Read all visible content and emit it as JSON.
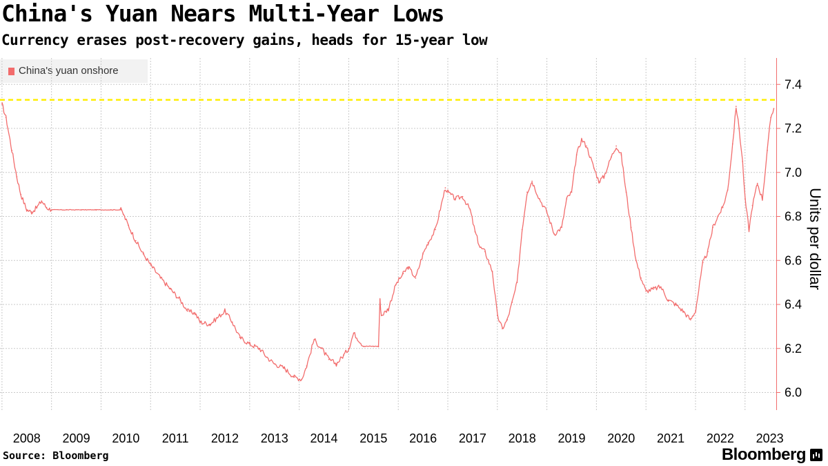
{
  "header": {
    "title": "China's Yuan Nears Multi-Year Lows",
    "subtitle": "Currency erases post-recovery gains, heads for 15-year low"
  },
  "footer": {
    "source": "Source: Bloomberg",
    "brand": "Bloomberg"
  },
  "colors": {
    "series": "#f26c6c",
    "reference_line": "#ffee00",
    "grid": "#c8c8c8",
    "axis": "#f26c6c"
  },
  "chart_data": {
    "type": "line",
    "title": "China's Yuan Nears Multi-Year Lows",
    "subtitle": "Currency erases post-recovery gains, heads for 15-year low",
    "xlabel": "",
    "ylabel": "Units per dollar",
    "ylim": [
      5.92,
      7.52
    ],
    "xlim": [
      2007.96,
      2023.63
    ],
    "y_ticks": [
      6.0,
      6.2,
      6.4,
      6.6,
      6.8,
      7.0,
      7.2,
      7.4
    ],
    "y_tick_labels": [
      "6.0",
      "6.2",
      "6.4",
      "6.6",
      "6.8",
      "7.0",
      "7.2",
      "7.4"
    ],
    "x_ticks": [
      2008,
      2009,
      2010,
      2011,
      2012,
      2013,
      2014,
      2015,
      2016,
      2017,
      2018,
      2019,
      2020,
      2021,
      2022,
      2023
    ],
    "x_tick_labels": [
      "2008",
      "2009",
      "2010",
      "2011",
      "2012",
      "2013",
      "2014",
      "2015",
      "2016",
      "2017",
      "2018",
      "2019",
      "2020",
      "2021",
      "2022",
      "2023"
    ],
    "grid": true,
    "legend_position": "top-left",
    "reference_line": {
      "y": 7.33,
      "style": "dashed"
    },
    "series": [
      {
        "name": "China's yuan onshore",
        "x": [
          2008.0,
          2008.08,
          2008.2,
          2008.3,
          2008.38,
          2008.5,
          2008.6,
          2008.7,
          2008.8,
          2008.9,
          2009.0,
          2009.3,
          2009.6,
          2009.9,
          2010.2,
          2010.4,
          2010.45,
          2010.55,
          2010.7,
          2010.85,
          2011.0,
          2011.2,
          2011.4,
          2011.6,
          2011.75,
          2011.9,
          2012.0,
          2012.2,
          2012.35,
          2012.5,
          2012.65,
          2012.8,
          2013.0,
          2013.2,
          2013.35,
          2013.5,
          2013.7,
          2013.9,
          2014.05,
          2014.15,
          2014.3,
          2014.45,
          2014.6,
          2014.75,
          2014.9,
          2015.0,
          2015.1,
          2015.3,
          2015.5,
          2015.6,
          2015.63,
          2015.66,
          2015.8,
          2015.95,
          2016.1,
          2016.2,
          2016.35,
          2016.5,
          2016.6,
          2016.75,
          2016.95,
          2017.0,
          2017.15,
          2017.3,
          2017.45,
          2017.55,
          2017.65,
          2017.75,
          2017.9,
          2018.0,
          2018.1,
          2018.2,
          2018.3,
          2018.4,
          2018.5,
          2018.6,
          2018.7,
          2018.85,
          2019.0,
          2019.15,
          2019.3,
          2019.4,
          2019.5,
          2019.6,
          2019.7,
          2019.8,
          2019.95,
          2020.05,
          2020.15,
          2020.3,
          2020.4,
          2020.5,
          2020.6,
          2020.7,
          2020.8,
          2020.9,
          2021.0,
          2021.15,
          2021.3,
          2021.45,
          2021.6,
          2021.75,
          2021.9,
          2022.0,
          2022.15,
          2022.25,
          2022.35,
          2022.45,
          2022.55,
          2022.65,
          2022.75,
          2022.82,
          2022.88,
          2022.95,
          2023.0,
          2023.08,
          2023.15,
          2023.25,
          2023.35,
          2023.45,
          2023.52,
          2023.58
        ],
        "y": [
          7.31,
          7.25,
          7.1,
          6.98,
          6.9,
          6.83,
          6.82,
          6.84,
          6.87,
          6.84,
          6.83,
          6.83,
          6.83,
          6.83,
          6.83,
          6.83,
          6.81,
          6.76,
          6.69,
          6.63,
          6.58,
          6.52,
          6.47,
          6.42,
          6.37,
          6.36,
          6.32,
          6.31,
          6.34,
          6.37,
          6.32,
          6.25,
          6.22,
          6.2,
          6.16,
          6.13,
          6.11,
          6.07,
          6.06,
          6.12,
          6.24,
          6.2,
          6.15,
          6.13,
          6.17,
          6.2,
          6.27,
          6.21,
          6.21,
          6.21,
          6.42,
          6.35,
          6.38,
          6.49,
          6.54,
          6.57,
          6.52,
          6.63,
          6.68,
          6.74,
          6.93,
          6.91,
          6.88,
          6.89,
          6.83,
          6.73,
          6.66,
          6.64,
          6.55,
          6.35,
          6.29,
          6.33,
          6.41,
          6.5,
          6.74,
          6.91,
          6.96,
          6.88,
          6.82,
          6.72,
          6.75,
          6.88,
          6.91,
          7.08,
          7.15,
          7.12,
          7.02,
          6.96,
          6.98,
          7.07,
          7.12,
          7.08,
          6.91,
          6.75,
          6.6,
          6.52,
          6.46,
          6.47,
          6.48,
          6.42,
          6.4,
          6.37,
          6.33,
          6.37,
          6.59,
          6.64,
          6.75,
          6.8,
          6.84,
          6.92,
          7.13,
          7.3,
          7.2,
          7.05,
          6.88,
          6.74,
          6.85,
          6.95,
          6.88,
          7.1,
          7.25,
          7.29
        ]
      }
    ]
  }
}
